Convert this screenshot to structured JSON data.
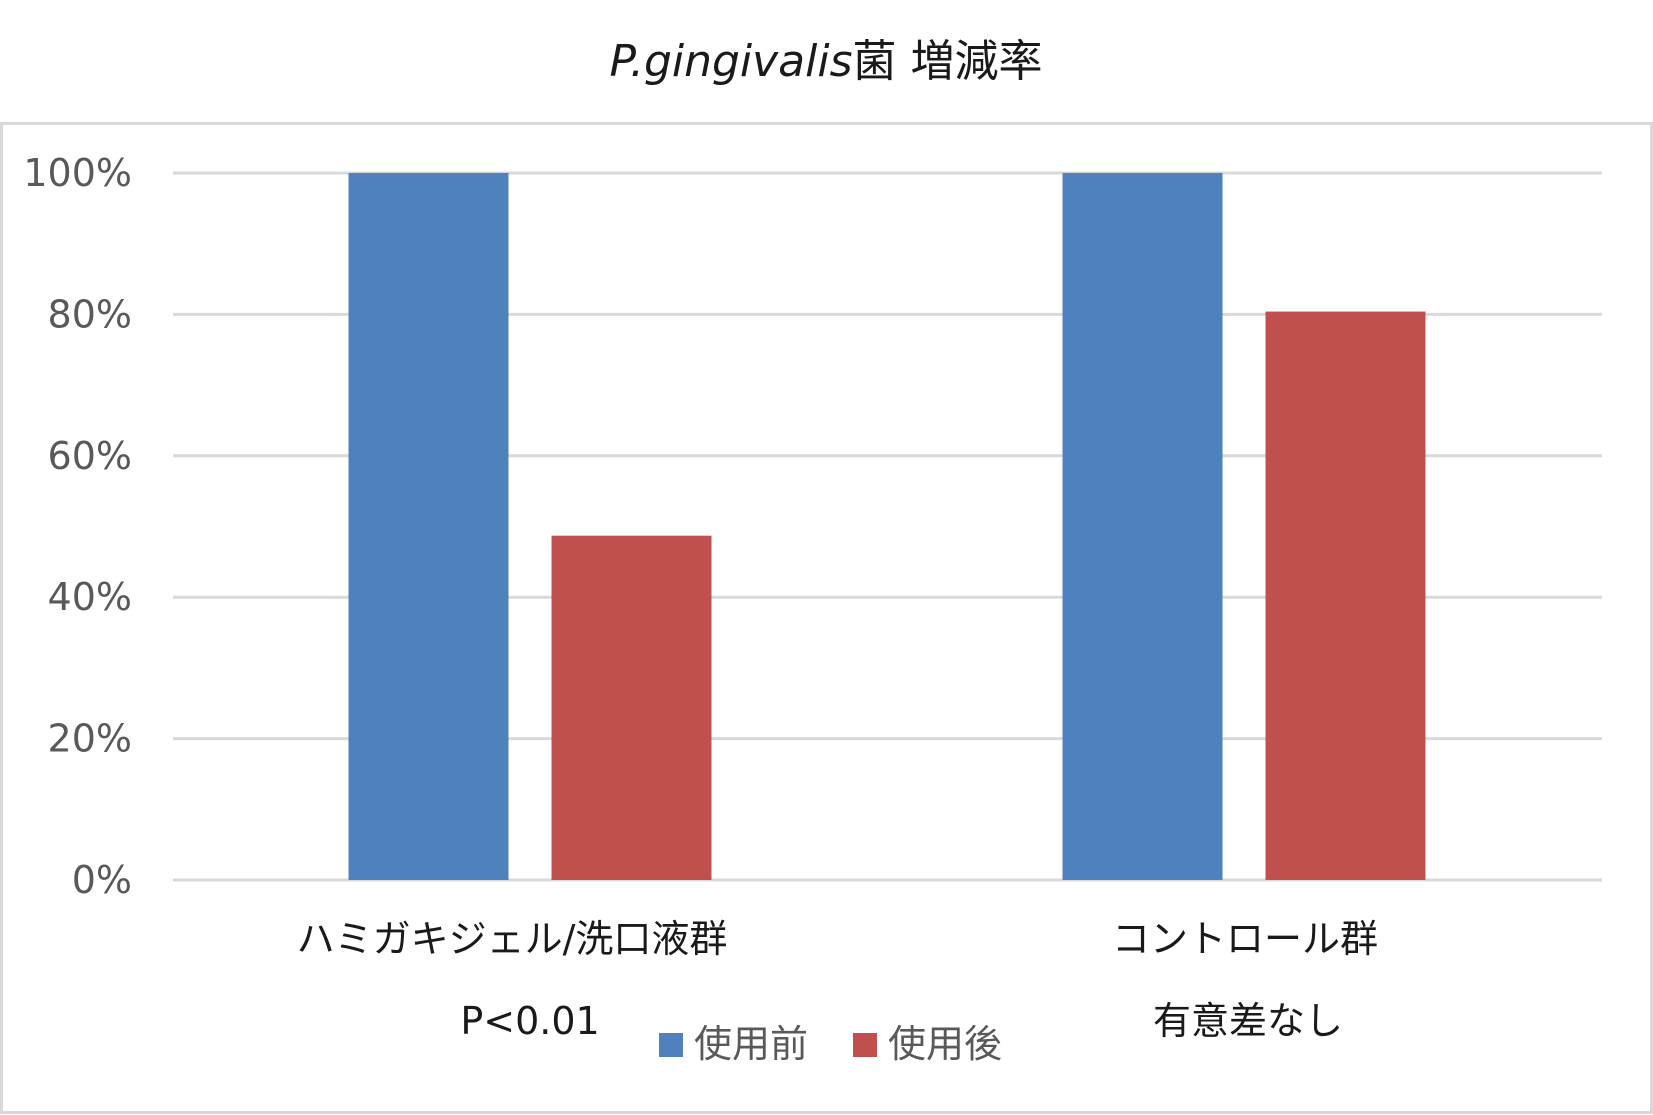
{
  "chart_data": {
    "type": "bar",
    "title_italic": "P.gingivalis",
    "title_rest": "菌 増減率",
    "categories": [
      "ハミガキジェル/洗口液群",
      "コントロール群"
    ],
    "category_notes": [
      "P<0.01",
      "有意差なし"
    ],
    "series": [
      {
        "name": "使用前",
        "color": "#4f81bd",
        "values": [
          100,
          100
        ]
      },
      {
        "name": "使用後",
        "color": "#c0504d",
        "values": [
          48.7,
          80.4
        ]
      }
    ],
    "yticks": [
      "0%",
      "20%",
      "40%",
      "60%",
      "80%",
      "100%"
    ],
    "ylim": [
      0,
      100
    ],
    "grid": true,
    "legend_position": "bottom"
  }
}
